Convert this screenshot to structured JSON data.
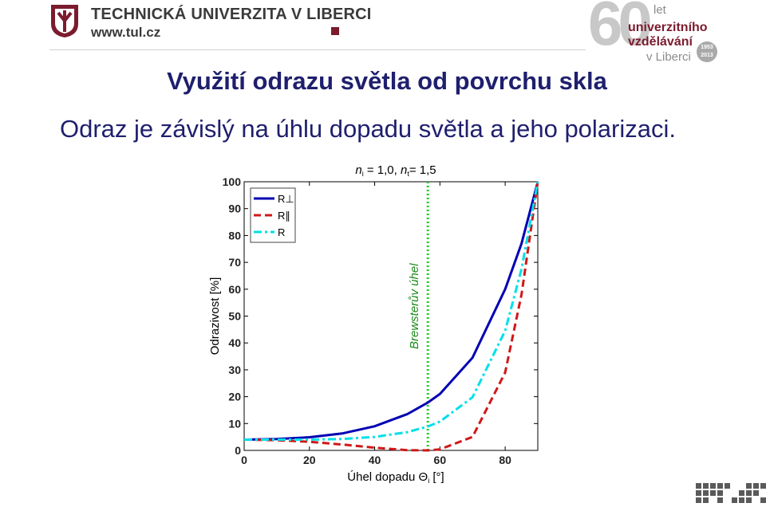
{
  "header": {
    "university_name": "TECHNICKÁ UNIVERZITA V LIBERCI",
    "website": "www.tul.cz",
    "anniversary": {
      "number": "60",
      "let": "let",
      "line1": "univerzitního",
      "line2": "vzdělávání",
      "line3": "v Liberci",
      "seal_top": "1953",
      "seal_bottom": "2013"
    }
  },
  "slide": {
    "title": "Využití odrazu světla od povrchu skla",
    "subtitle": "Odraz je závislý na úhlu dopadu světla a jeho polarizaci."
  },
  "colors": {
    "title": "#1f1f6e",
    "brand": "#7b1b2e",
    "r_perp": "#0000b4",
    "r_par": "#d01818",
    "r_avg": "#00e0e8",
    "brewster": "#22cc22"
  },
  "chart_data": {
    "type": "line",
    "title": "n_i = 1,0, n_t = 1,5",
    "xlabel": "Úhel dopadu Θ_i [°]",
    "ylabel": "Odrazivost [%]",
    "xlim": [
      0,
      90
    ],
    "ylim": [
      0,
      100
    ],
    "xticks": [
      0,
      20,
      40,
      60,
      80
    ],
    "yticks": [
      0,
      10,
      20,
      30,
      40,
      50,
      60,
      70,
      80,
      90,
      100
    ],
    "grid": false,
    "legend_position": "top-left",
    "series": [
      {
        "name": "R⊥",
        "style": "solid",
        "color": "#0000b4",
        "x": [
          0,
          10,
          20,
          30,
          40,
          50,
          56.3,
          60,
          70,
          80,
          85,
          90
        ],
        "y": [
          4.0,
          4.2,
          4.9,
          6.3,
          9.0,
          13.5,
          17.8,
          21.0,
          34.5,
          60.0,
          77.0,
          100
        ]
      },
      {
        "name": "R∥",
        "style": "dashed",
        "color": "#d01818",
        "x": [
          0,
          10,
          20,
          30,
          40,
          50,
          56.3,
          60,
          70,
          80,
          85,
          90
        ],
        "y": [
          4.0,
          3.8,
          3.2,
          2.2,
          1.0,
          0.1,
          0.0,
          0.4,
          5.0,
          29.0,
          58.0,
          100
        ]
      },
      {
        "name": "R",
        "style": "dashdot",
        "color": "#00e0e8",
        "x": [
          0,
          10,
          20,
          30,
          40,
          50,
          56.3,
          60,
          70,
          80,
          85,
          90
        ],
        "y": [
          4.0,
          4.0,
          4.05,
          4.25,
          5.0,
          6.8,
          8.9,
          10.7,
          19.8,
          44.5,
          67.5,
          100
        ]
      }
    ],
    "annotations": [
      {
        "type": "vline",
        "x": 56.3,
        "style": "dotted",
        "color": "#22cc22",
        "label": "Brewsterův úhel"
      }
    ]
  }
}
